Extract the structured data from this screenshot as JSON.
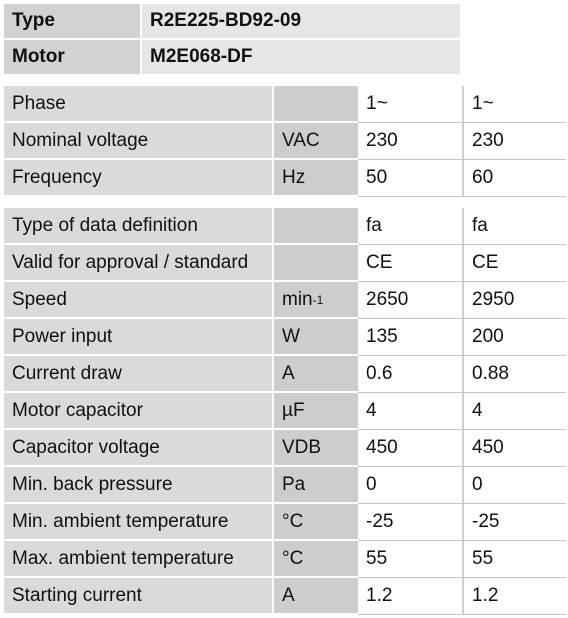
{
  "header": {
    "rows": [
      [
        "Type",
        "R2E225-BD92-09"
      ],
      [
        "Motor",
        "M2E068-DF"
      ]
    ]
  },
  "table1": {
    "rows": [
      [
        "Phase",
        "",
        "1~",
        "1~"
      ],
      [
        "Nominal voltage",
        "VAC",
        "230",
        "230"
      ],
      [
        "Frequency",
        "Hz",
        "50",
        "60"
      ]
    ]
  },
  "table2": {
    "rows": [
      [
        "Type of data definition",
        "",
        "fa",
        "fa"
      ],
      [
        "Valid for approval / standard",
        "",
        "CE",
        "CE"
      ],
      [
        "Speed",
        [
          "min",
          "-1"
        ],
        "2650",
        "2950"
      ],
      [
        "Power input",
        "W",
        "135",
        "200"
      ],
      [
        "Current draw",
        "A",
        "0.6",
        "0.88"
      ],
      [
        "Motor capacitor",
        "µF",
        "4",
        "4"
      ],
      [
        "Capacitor voltage",
        "VDB",
        "450",
        "450"
      ],
      [
        "Min. back pressure",
        "Pa",
        "0",
        "0"
      ],
      [
        "Min. ambient temperature",
        "°C",
        "-25",
        "-25"
      ],
      [
        "Max. ambient temperature",
        "°C",
        "55",
        "55"
      ],
      [
        "Starting current",
        "A",
        "1.2",
        "1.2"
      ]
    ]
  }
}
